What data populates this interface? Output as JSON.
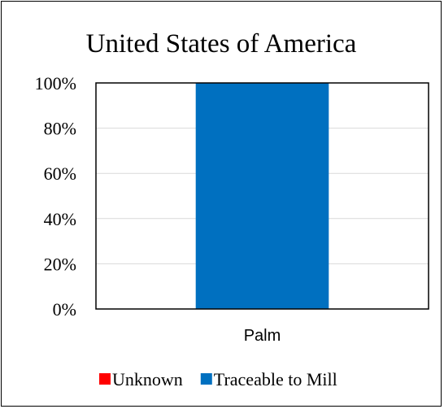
{
  "chart_data": {
    "type": "bar",
    "stacked": true,
    "title": "United States of America",
    "categories": [
      "Palm"
    ],
    "series": [
      {
        "name": "Unknown",
        "color": "#ff0000",
        "values": [
          0
        ]
      },
      {
        "name": "Traceable to Mill",
        "color": "#0070c0",
        "values": [
          100
        ]
      }
    ],
    "ylim": [
      0,
      100
    ],
    "yticks": [
      "0%",
      "20%",
      "40%",
      "60%",
      "80%",
      "100%"
    ],
    "grid": true,
    "legend_position": "bottom"
  }
}
